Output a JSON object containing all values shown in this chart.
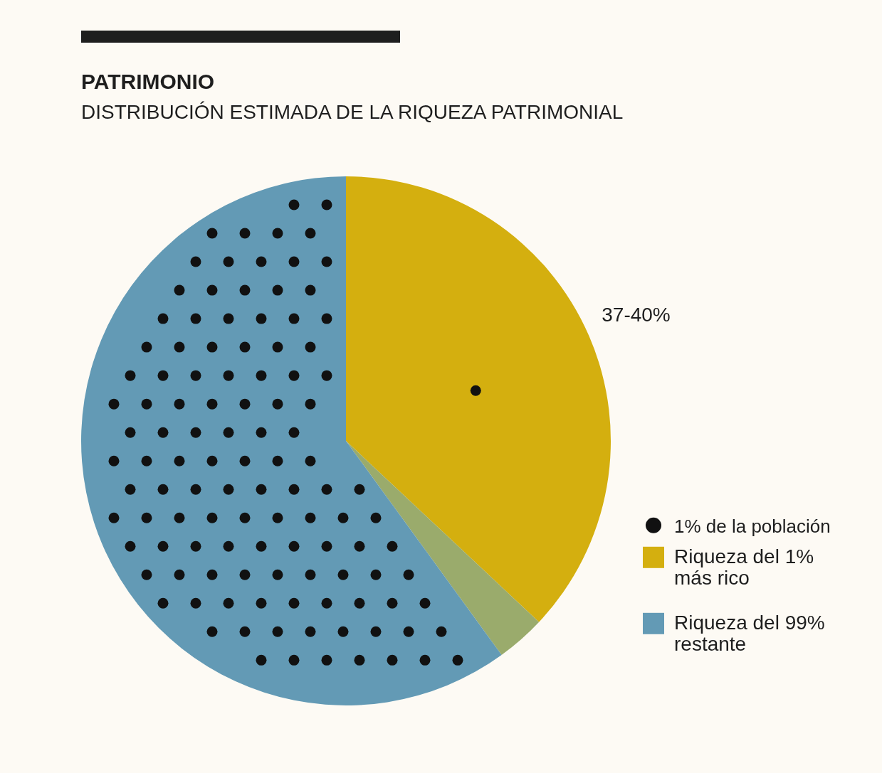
{
  "chart_data": {
    "type": "pie",
    "title": "PATRIMONIO",
    "subtitle": "DISTRIBUCIÓN ESTIMADA DE LA RIQUEZA PATRIMONIAL",
    "categories": [
      "Riqueza del 1% más rico",
      null,
      "Riqueza del 99% restante"
    ],
    "values": [
      37,
      3,
      60
    ],
    "colors": [
      "#d4af0f",
      "#9aab6c",
      "#639ab5"
    ],
    "value_labels": [
      "37-40%",
      null,
      null
    ],
    "annotations": [
      "1% de la población"
    ],
    "legend": "right"
  }
}
